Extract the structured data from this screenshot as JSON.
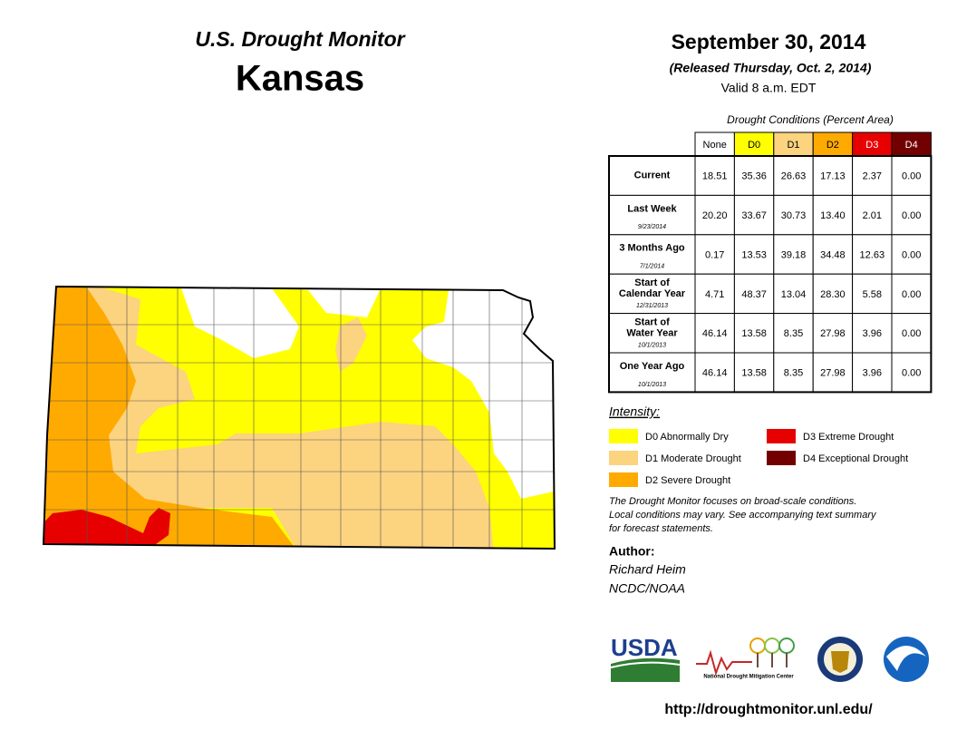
{
  "header": {
    "program": "U.S. Drought Monitor",
    "state": "Kansas",
    "date": "September 30, 2014",
    "released": "(Released Thursday, Oct. 2, 2014)",
    "valid": "Valid 8 a.m. EDT"
  },
  "table": {
    "title": "Drought Conditions (Percent Area)",
    "columns": [
      {
        "label": "None",
        "color": "#ffffff"
      },
      {
        "label": "D0",
        "color": "#ffff00"
      },
      {
        "label": "D1",
        "color": "#fcd37f"
      },
      {
        "label": "D2",
        "color": "#ffaa00"
      },
      {
        "label": "D3",
        "color": "#e60000"
      },
      {
        "label": "D4",
        "color": "#730000"
      }
    ],
    "rows": [
      {
        "label": "Current",
        "values": [
          "18.51",
          "35.36",
          "26.63",
          "17.13",
          "2.37",
          "0.00"
        ]
      },
      {
        "label": "Last Week",
        "date": "9/23/2014",
        "values": [
          "20.20",
          "33.67",
          "30.73",
          "13.40",
          "2.01",
          "0.00"
        ]
      },
      {
        "label": "3 Months Ago",
        "date": "7/1/2014",
        "values": [
          "0.17",
          "13.53",
          "39.18",
          "34.48",
          "12.63",
          "0.00"
        ]
      },
      {
        "label": [
          "Start of",
          "Calendar Year"
        ],
        "date": "12/31/2013",
        "values": [
          "4.71",
          "48.37",
          "13.04",
          "28.30",
          "5.58",
          "0.00"
        ]
      },
      {
        "label": [
          "Start of",
          "Water Year"
        ],
        "date": "10/1/2013",
        "values": [
          "46.14",
          "13.58",
          "8.35",
          "27.98",
          "3.96",
          "0.00"
        ]
      },
      {
        "label": "One Year Ago",
        "date": "10/1/2013",
        "values": [
          "46.14",
          "13.58",
          "8.35",
          "27.98",
          "3.96",
          "0.00"
        ]
      }
    ]
  },
  "legend": {
    "title": "Intensity:",
    "items": [
      {
        "label": "D0 Abnormally Dry",
        "color": "#ffff00"
      },
      {
        "label": "D1 Moderate Drought",
        "color": "#fcd37f"
      },
      {
        "label": "D2 Severe Drought",
        "color": "#ffaa00"
      },
      {
        "label": "D3 Extreme Drought",
        "color": "#e60000"
      },
      {
        "label": "D4 Exceptional Drought",
        "color": "#730000"
      }
    ]
  },
  "note": [
    "The Drought Monitor focuses on broad-scale conditions.",
    "Local conditions may vary. See accompanying text summary",
    "for forecast statements."
  ],
  "author": {
    "title": "Author:",
    "name": "Richard Heim",
    "org": "NCDC/NOAA"
  },
  "logos": {
    "usda": "USDA",
    "ndmc": "National Drought Mitigation Center"
  },
  "url": "http://droughtmonitor.unl.edu/"
}
